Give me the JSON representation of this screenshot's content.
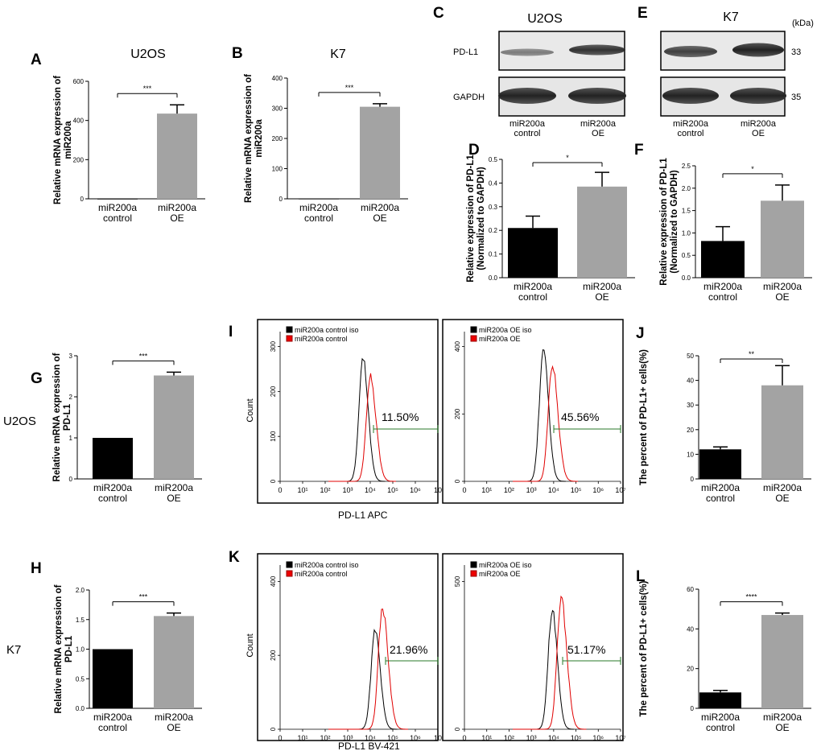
{
  "row_labels": {
    "u2os": "U2OS",
    "k7": "K7"
  },
  "blots": {
    "C": {
      "letter": "C",
      "title": "U2OS",
      "rows": [
        "PD-L1",
        "GAPDH"
      ],
      "lanes": [
        "miR200a\ncontrol",
        "miR200a\nOE"
      ]
    },
    "E": {
      "letter": "E",
      "title": "K7",
      "kda_label": "(kDa)",
      "kda": [
        "33",
        "35"
      ],
      "lanes": [
        "miR200a\ncontrol",
        "miR200a\nOE"
      ]
    }
  },
  "flow": {
    "I": {
      "letter": "I",
      "xlabel": "PD-L1 APC",
      "ylabel": "Count",
      "xticks": [
        "0",
        "10¹",
        "10²",
        "10³",
        "10⁴",
        "10⁵",
        "10⁶",
        "10"
      ],
      "xticks_right": [
        "0",
        "10¹",
        "10²",
        "10³",
        "10⁴",
        "10⁵",
        "10⁶",
        "10⁷"
      ],
      "left": {
        "legend": [
          "miR200a control iso",
          "miR200a control"
        ],
        "yticks": [
          "0",
          "100",
          "200",
          "300"
        ],
        "gate": "11.50%"
      },
      "right": {
        "legend": [
          "miR200a OE iso",
          "miR200a OE"
        ],
        "yticks": [
          "0",
          "200",
          "400"
        ],
        "gate": "45.56%"
      }
    },
    "K": {
      "letter": "K",
      "xlabel": "PD-L1 BV-421",
      "ylabel": "Count",
      "xticks": [
        "0",
        "10¹",
        "10²",
        "10³",
        "10⁴",
        "10⁵",
        "10⁶",
        "10"
      ],
      "xticks_right": [
        "0",
        "10¹",
        "10²",
        "10³",
        "10⁴",
        "10⁵",
        "10⁶",
        "10⁷"
      ],
      "left": {
        "legend": [
          "miR200a control iso",
          "miR200a control"
        ],
        "yticks": [
          "0",
          "200",
          "400"
        ],
        "gate": "21.96%"
      },
      "right": {
        "legend": [
          "miR200a OE iso",
          "miR200a OE"
        ],
        "yticks": [
          "0",
          "500"
        ],
        "gate": "51.17%"
      }
    }
  },
  "chart_data": [
    {
      "panel": "A",
      "type": "bar",
      "title": "U2OS",
      "ylabel": "Relative mRNA expression of\nmiR200a",
      "categories": [
        "miR200a\ncontrol",
        "miR200a\nOE"
      ],
      "values": [
        1,
        435
      ],
      "errors": [
        0,
        45
      ],
      "colors": [
        "#000000",
        "#a3a3a3"
      ],
      "ylim": [
        0,
        600
      ],
      "yticks": [
        "0",
        "200",
        "400",
        "600"
      ],
      "significance": "***"
    },
    {
      "panel": "B",
      "type": "bar",
      "title": "K7",
      "ylabel": "Relative mRNA expression of\nmiR200a",
      "categories": [
        "miR200a\ncontrol",
        "miR200a\nOE"
      ],
      "values": [
        1,
        305
      ],
      "errors": [
        0,
        10
      ],
      "colors": [
        "#000000",
        "#a3a3a3"
      ],
      "ylim": [
        0,
        400
      ],
      "yticks": [
        "0",
        "100",
        "200",
        "300",
        "400"
      ],
      "significance": "***"
    },
    {
      "panel": "D",
      "type": "bar",
      "title": "",
      "ylabel": "Relative expression of PD-L1\n(Normalized to GAPDH)",
      "categories": [
        "miR200a\ncontrol",
        "miR200a\nOE"
      ],
      "values": [
        0.21,
        0.385
      ],
      "errors": [
        0.05,
        0.06
      ],
      "colors": [
        "#000000",
        "#a3a3a3"
      ],
      "ylim": [
        0,
        0.5
      ],
      "yticks": [
        "0.0",
        "0.1",
        "0.2",
        "0.3",
        "0.4",
        "0.5"
      ],
      "significance": "*"
    },
    {
      "panel": "F",
      "type": "bar",
      "title": "",
      "ylabel": "Relative expression of PD-L1\n(Normalized to GAPDH)",
      "categories": [
        "miR200a\ncontrol",
        "miR200a\nOE"
      ],
      "values": [
        0.82,
        1.72
      ],
      "errors": [
        0.32,
        0.35
      ],
      "colors": [
        "#000000",
        "#a3a3a3"
      ],
      "ylim": [
        0,
        2.5
      ],
      "yticks": [
        "0.0",
        "0.5",
        "1.0",
        "1.5",
        "2.0",
        "2.5"
      ],
      "significance": "*"
    },
    {
      "panel": "G",
      "type": "bar",
      "title": "",
      "ylabel": "Relative mRNA expression of\nPD-L1",
      "categories": [
        "miR200a\ncontrol",
        "miR200a\nOE"
      ],
      "values": [
        1.0,
        2.52
      ],
      "errors": [
        0,
        0.08
      ],
      "colors": [
        "#000000",
        "#a3a3a3"
      ],
      "ylim": [
        0,
        3
      ],
      "yticks": [
        "0",
        "1",
        "2",
        "3"
      ],
      "significance": "***"
    },
    {
      "panel": "H",
      "type": "bar",
      "title": "",
      "ylabel": "Relative mRNA expression of\nPD-L1",
      "categories": [
        "miR200a\ncontrol",
        "miR200a\nOE"
      ],
      "values": [
        1.0,
        1.56
      ],
      "errors": [
        0,
        0.05
      ],
      "colors": [
        "#000000",
        "#a3a3a3"
      ],
      "ylim": [
        0,
        2.0
      ],
      "yticks": [
        "0.0",
        "0.5",
        "1.0",
        "1.5",
        "2.0"
      ],
      "significance": "***"
    },
    {
      "panel": "J",
      "type": "bar",
      "title": "",
      "ylabel": "The percent of PD-L1+ cells(%)",
      "categories": [
        "miR200a\ncontrol",
        "miR200a\nOE"
      ],
      "values": [
        12,
        38
      ],
      "errors": [
        1,
        8
      ],
      "colors": [
        "#000000",
        "#a3a3a3"
      ],
      "ylim": [
        0,
        50
      ],
      "yticks": [
        "0",
        "10",
        "20",
        "30",
        "40",
        "50"
      ],
      "significance": "**"
    },
    {
      "panel": "L",
      "type": "bar",
      "title": "",
      "ylabel": "The percent of PD-L1+ cells(%)",
      "categories": [
        "miR200a\ncontrol",
        "miR200a\nOE"
      ],
      "values": [
        8,
        47
      ],
      "errors": [
        1,
        1
      ],
      "colors": [
        "#000000",
        "#a3a3a3"
      ],
      "ylim": [
        0,
        60
      ],
      "yticks": [
        "0",
        "20",
        "40",
        "60"
      ],
      "significance": "****"
    }
  ]
}
